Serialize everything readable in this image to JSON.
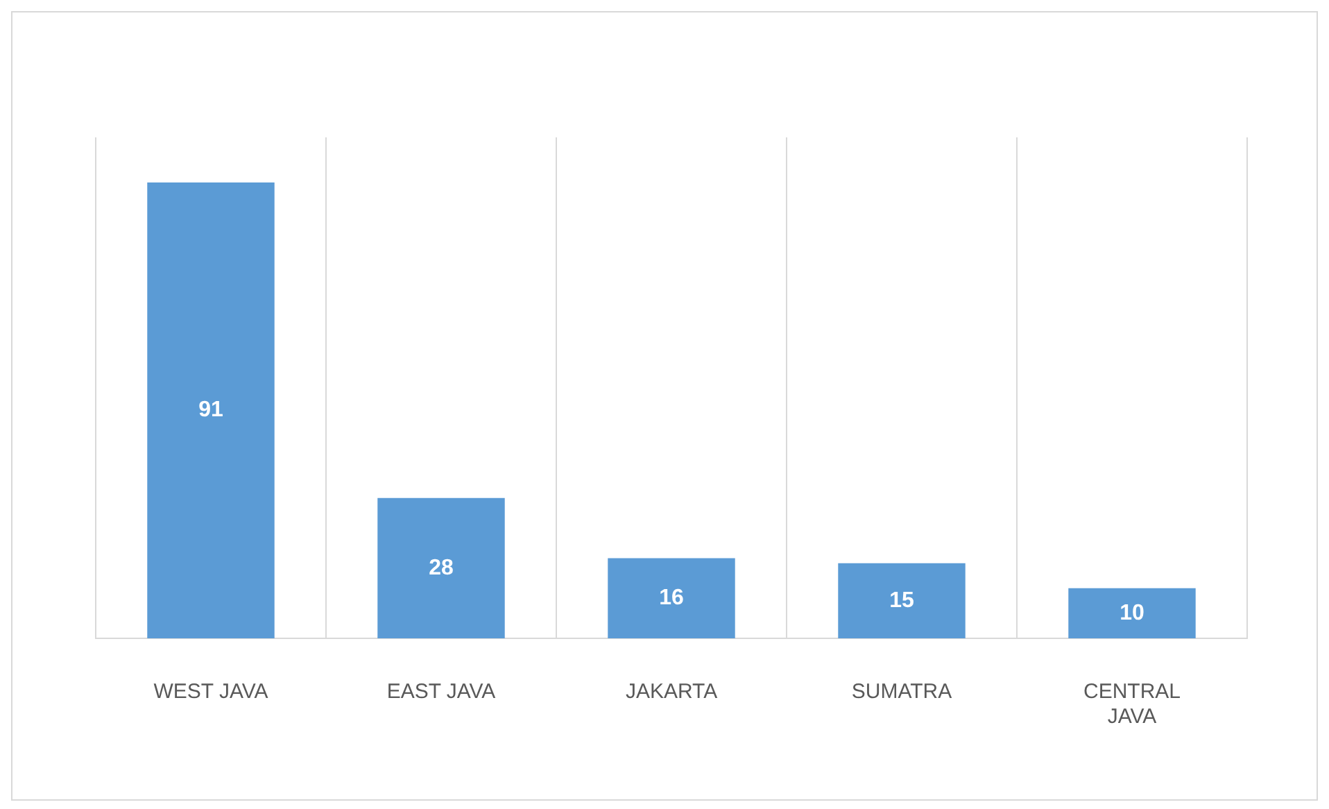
{
  "chart_data": {
    "type": "bar",
    "categories": [
      "WEST JAVA",
      "EAST JAVA",
      "JAKARTA",
      "SUMATRA",
      "CENTRAL JAVA"
    ],
    "values": [
      91,
      28,
      16,
      15,
      10
    ],
    "color": "#5b9bd5",
    "data_labels": true,
    "grid": "x",
    "tick_labels": "x",
    "legend": false
  }
}
